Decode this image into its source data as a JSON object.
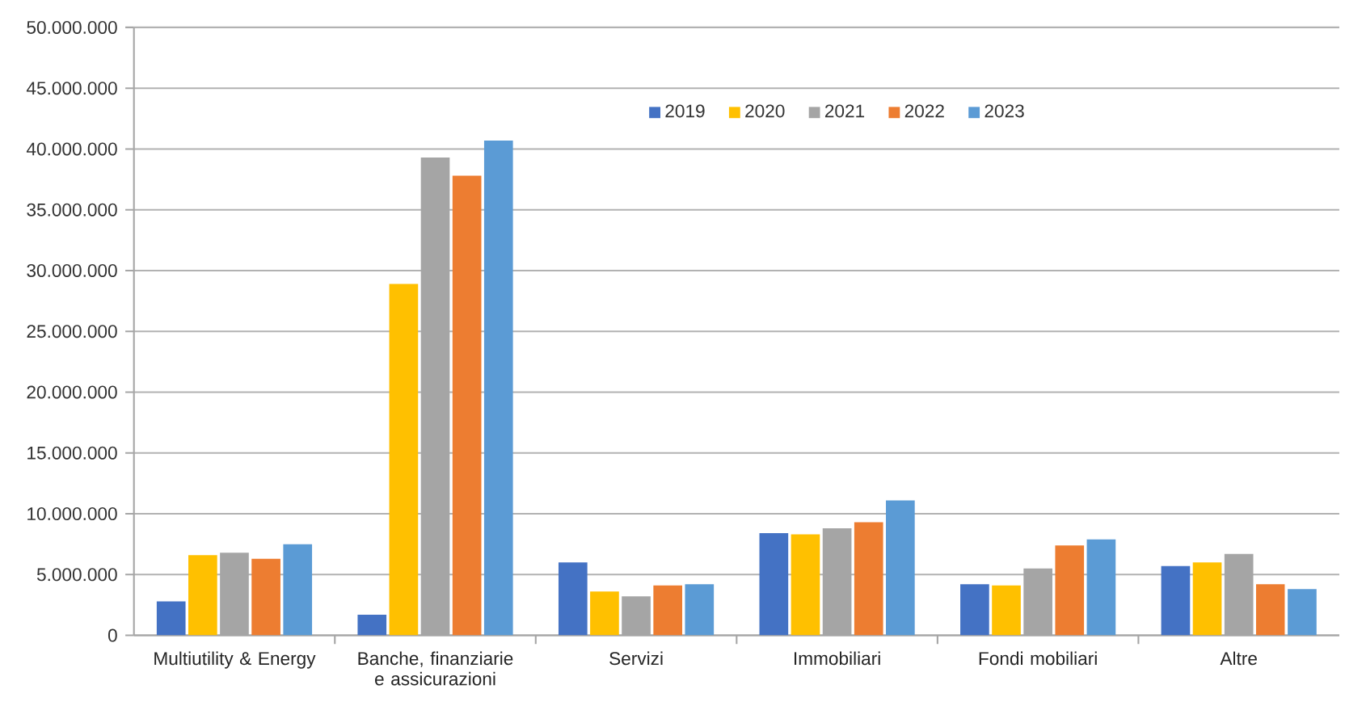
{
  "chart_data": {
    "type": "bar",
    "categories": [
      "Multiutility & Energy",
      "Banche, finanziarie e assicurazioni",
      "Servizi",
      "Immobiliari",
      "Fondi mobiliari",
      "Altre"
    ],
    "series": [
      {
        "name": "2019",
        "color": "#4472c4",
        "values": [
          2800000,
          1700000,
          6000000,
          8400000,
          4200000,
          5700000
        ]
      },
      {
        "name": "2020",
        "color": "#ffc000",
        "values": [
          6600000,
          28900000,
          3600000,
          8300000,
          4100000,
          6000000
        ]
      },
      {
        "name": "2021",
        "color": "#a5a5a5",
        "values": [
          6800000,
          39300000,
          3200000,
          8800000,
          5500000,
          6700000
        ]
      },
      {
        "name": "2022",
        "color": "#ed7d31",
        "values": [
          6300000,
          37800000,
          4100000,
          9300000,
          7400000,
          4200000
        ]
      },
      {
        "name": "2023",
        "color": "#5b9bd5",
        "values": [
          7500000,
          40700000,
          4200000,
          11100000,
          7900000,
          3800000
        ]
      }
    ],
    "ylim": [
      0,
      50000000
    ],
    "yticks": [
      0,
      {
        "value": 5000000,
        "label": "5.000.000"
      },
      {
        "value": 10000000,
        "label": "10.000.000"
      },
      {
        "value": 15000000,
        "label": "15.000.000"
      },
      {
        "value": 20000000,
        "label": "20.000.000"
      },
      {
        "value": 25000000,
        "label": "25.000.000"
      },
      {
        "value": 30000000,
        "label": "30.000.000"
      },
      {
        "value": 35000000,
        "label": "35.000.000"
      },
      {
        "value": 40000000,
        "label": "40.000.000"
      },
      {
        "value": 45000000,
        "label": "45.000.000"
      },
      {
        "value": 50000000,
        "label": "50.000.000"
      }
    ],
    "grid": "y",
    "legend": "top"
  }
}
